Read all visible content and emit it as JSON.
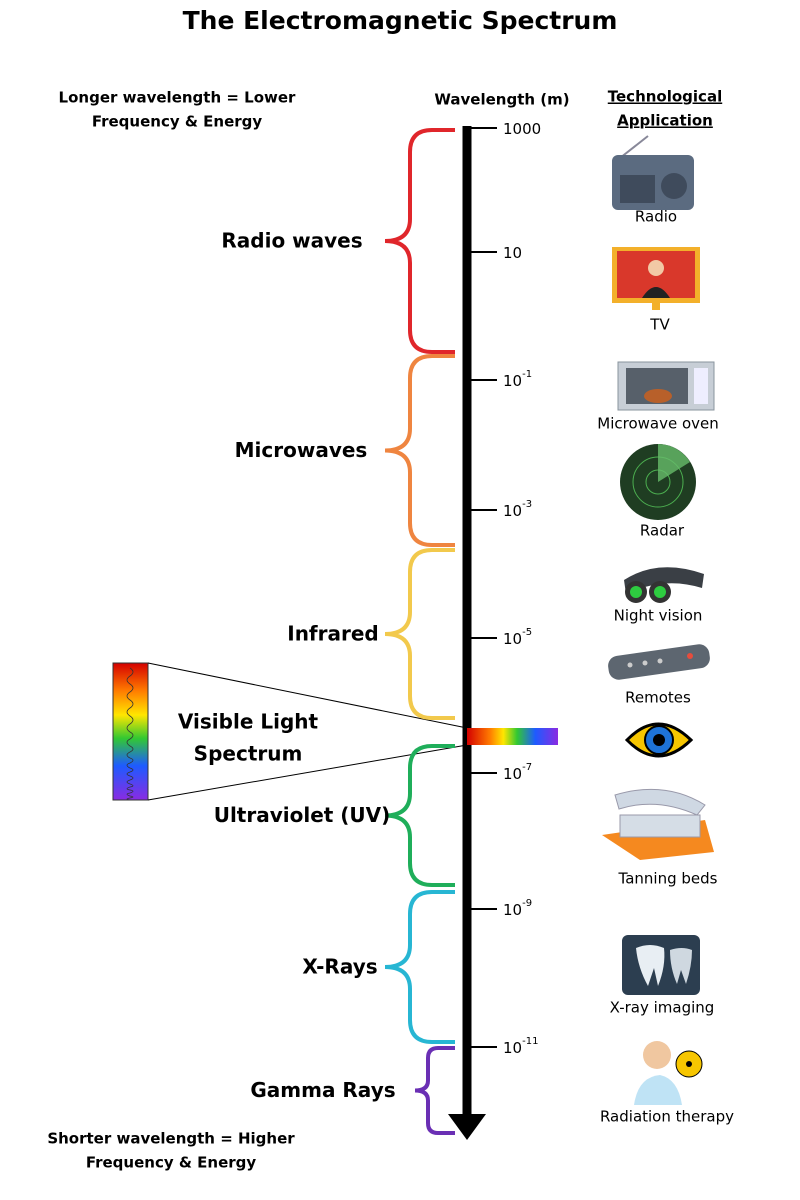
{
  "title": "The Electromagnetic Spectrum",
  "notes": {
    "top": [
      "Longer wavelength = Lower",
      "Frequency & Energy"
    ],
    "bottom": [
      "Shorter wavelength = Higher",
      "Frequency & Energy"
    ]
  },
  "axis": {
    "label": "Wavelength (m)",
    "ticks": [
      {
        "base": "1000"
      },
      {
        "base": "10"
      },
      {
        "base": "10",
        "exp": "-1"
      },
      {
        "base": "10",
        "exp": "-3"
      },
      {
        "base": "10",
        "exp": "-5"
      },
      {
        "base": "10",
        "exp": "-7"
      },
      {
        "base": "10",
        "exp": "-9"
      },
      {
        "base": "10",
        "exp": "-11"
      }
    ]
  },
  "applications_header": [
    "Technological",
    "Application"
  ],
  "bands": [
    {
      "name": "Radio waves",
      "color": "#e0262b"
    },
    {
      "name": "Microwaves",
      "color": "#ef8540"
    },
    {
      "name": "Infrared",
      "color": "#f2c94c"
    },
    {
      "name": "Ultraviolet (UV)",
      "color": "#1fae5a"
    },
    {
      "name": "X-Rays",
      "color": "#27b6d3"
    },
    {
      "name": "Gamma Rays",
      "color": "#6a2fb4"
    }
  ],
  "visible_light": [
    "Visible Light",
    "Spectrum"
  ],
  "applications": [
    "Radio",
    "TV",
    "Microwave oven",
    "Radar",
    "Night vision",
    "Remotes",
    "Tanning beds",
    "X-ray imaging",
    "Radiation therapy"
  ]
}
